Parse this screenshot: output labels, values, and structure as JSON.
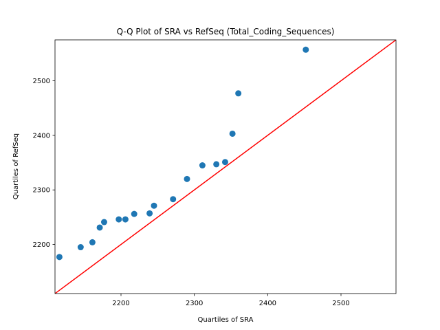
{
  "chart_data": {
    "type": "scatter",
    "title": "Q-Q Plot of SRA vs RefSeq (Total_Coding_Sequences)",
    "xlabel": "Quartiles of SRA",
    "ylabel": "Quartiles of RefSeq",
    "xlim": [
      2110,
      2575
    ],
    "ylim": [
      2110,
      2575
    ],
    "xticks": [
      2200,
      2300,
      2400,
      2500
    ],
    "yticks": [
      2200,
      2300,
      2400,
      2500
    ],
    "grid": false,
    "points": {
      "x": [
        2116,
        2145,
        2161,
        2171,
        2177,
        2197,
        2206,
        2218,
        2239,
        2245,
        2271,
        2290,
        2311,
        2330,
        2342,
        2352,
        2360,
        2452
      ],
      "y": [
        2177,
        2195,
        2204,
        2231,
        2241,
        2246,
        2246,
        2256,
        2257,
        2271,
        2283,
        2320,
        2345,
        2347,
        2351,
        2403,
        2477,
        2557
      ]
    },
    "reference_line": {
      "from": [
        2110,
        2110
      ],
      "to": [
        2575,
        2575
      ]
    },
    "colors": {
      "points": "#1f77b4",
      "reference_line": "#ff0000",
      "axes": "#000000"
    }
  }
}
